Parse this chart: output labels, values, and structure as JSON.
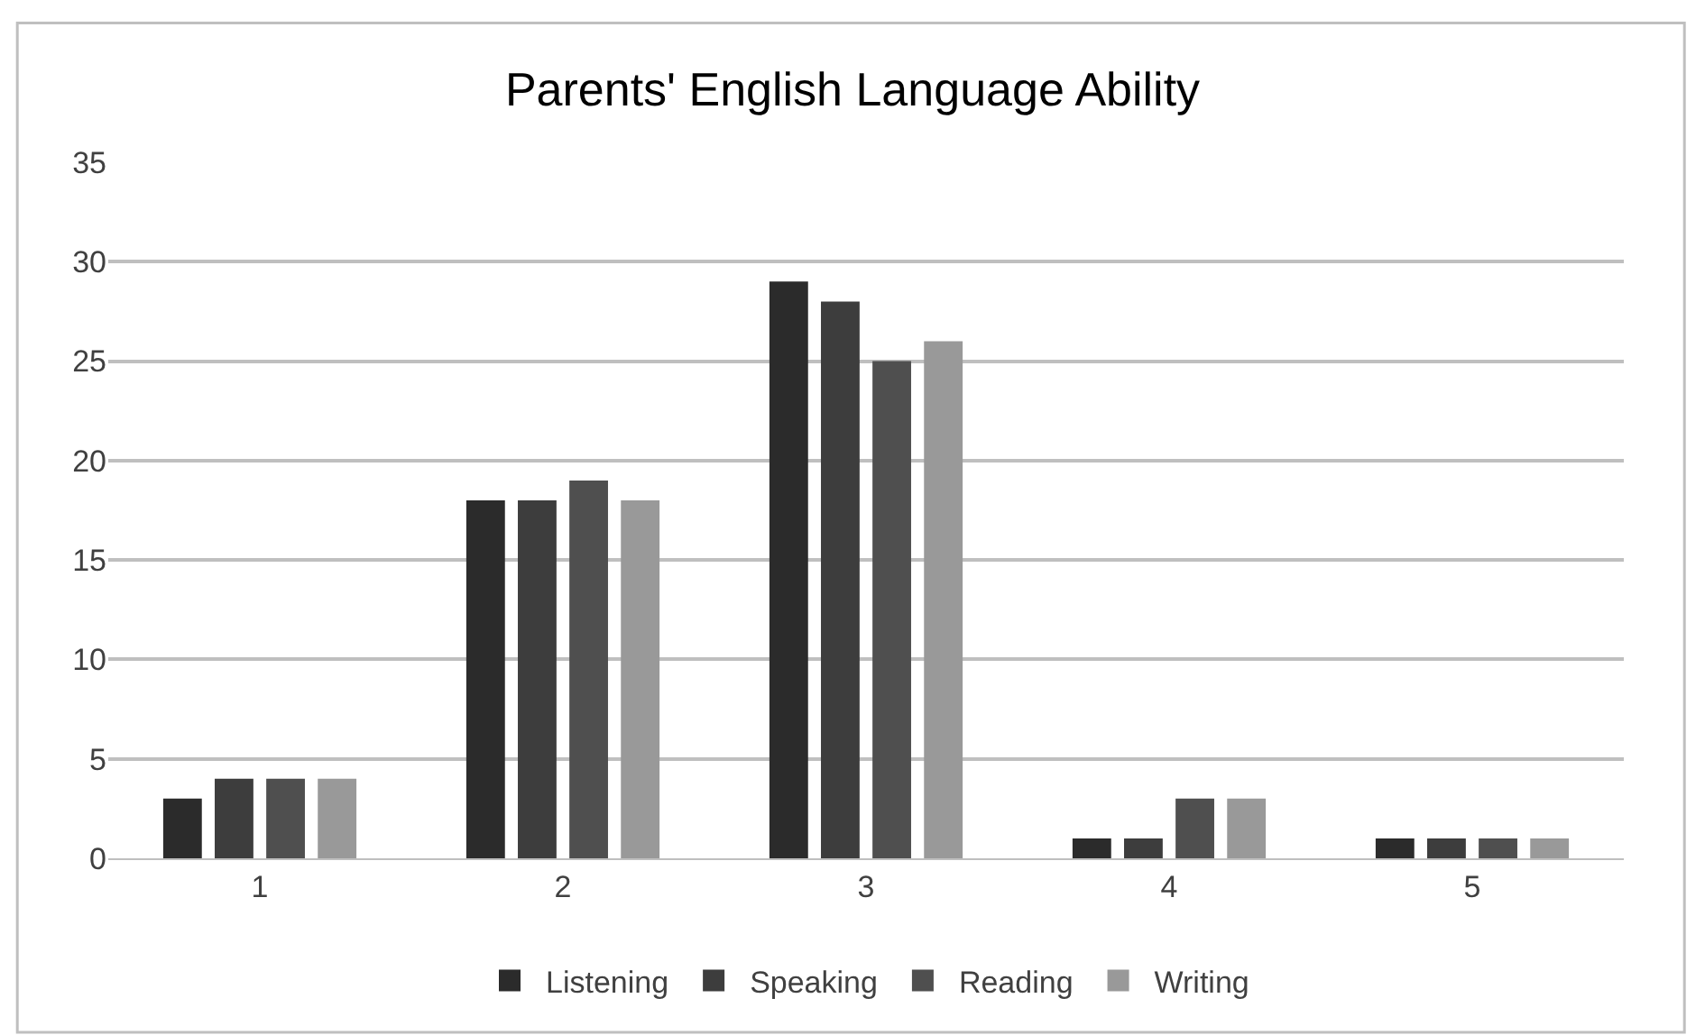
{
  "chart_data": {
    "type": "bar",
    "title": "Parents' English Language Ability",
    "categories": [
      "1",
      "2",
      "3",
      "4",
      "5"
    ],
    "series": [
      {
        "name": "Listening",
        "color": "#2b2b2b",
        "values": [
          3,
          18,
          29,
          1,
          1
        ]
      },
      {
        "name": "Speaking",
        "color": "#3d3d3d",
        "values": [
          4,
          18,
          28,
          1,
          1
        ]
      },
      {
        "name": "Reading",
        "color": "#4f4f4f",
        "values": [
          4,
          19,
          25,
          3,
          1
        ]
      },
      {
        "name": "Writing",
        "color": "#999999",
        "values": [
          4,
          18,
          26,
          3,
          1
        ]
      }
    ],
    "ylim": [
      0,
      35
    ],
    "yticks": [
      0,
      5,
      10,
      15,
      20,
      25,
      30,
      35
    ],
    "grid": "y",
    "legend": "bottom"
  }
}
